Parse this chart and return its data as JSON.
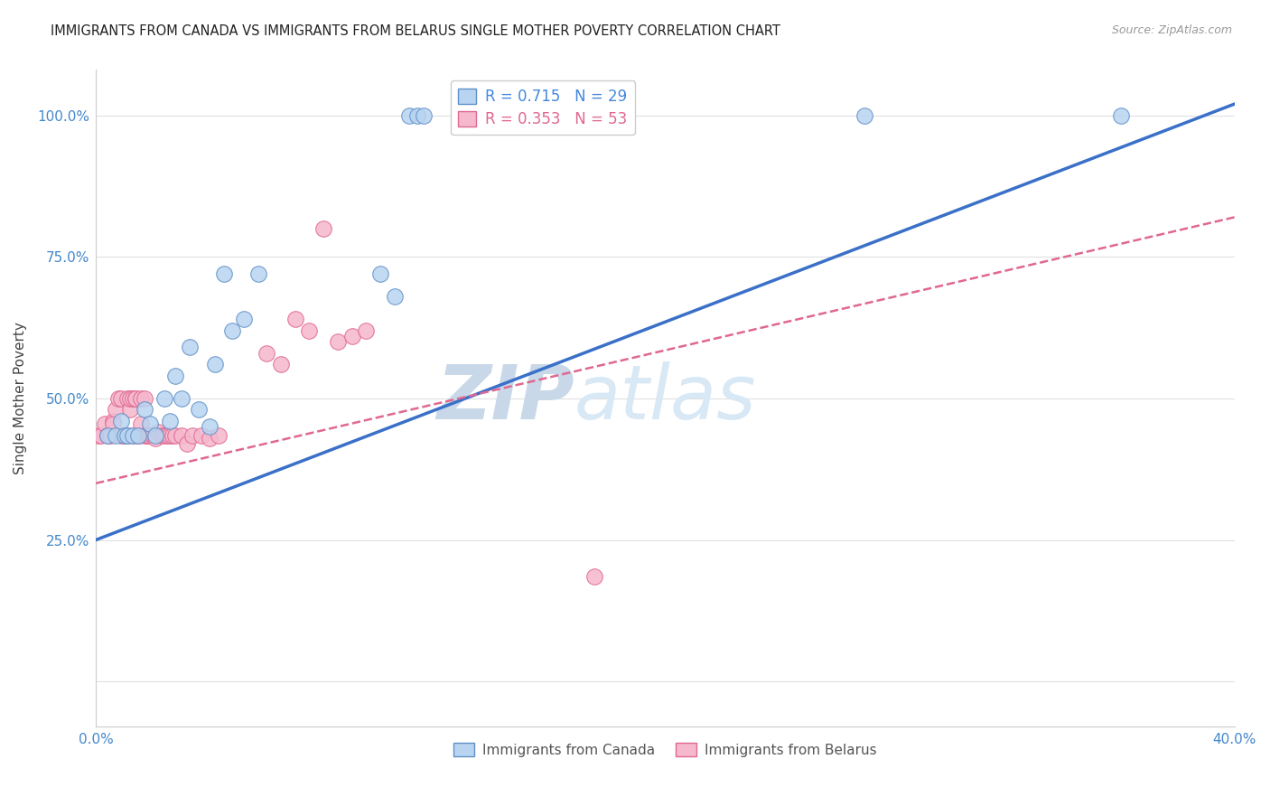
{
  "title": "IMMIGRANTS FROM CANADA VS IMMIGRANTS FROM BELARUS SINGLE MOTHER POVERTY CORRELATION CHART",
  "source": "Source: ZipAtlas.com",
  "ylabel": "Single Mother Poverty",
  "canada_label": "Immigrants from Canada",
  "belarus_label": "Immigrants from Belarus",
  "canada_color": "#b8d4f0",
  "canada_edge_color": "#6090c8",
  "belarus_color": "#f5b8cc",
  "belarus_edge_color": "#e06890",
  "trend_canada_color": "#3a70c8",
  "trend_belarus_color": "#e06890",
  "watermark_zip": "ZIP",
  "watermark_atlas": "atlas",
  "watermark_color": "#d8e8f5",
  "legend_r_canada": "R = 0.715",
  "legend_n_canada": "N = 29",
  "legend_r_belarus": "R = 0.353",
  "legend_n_belarus": "N = 53",
  "legend_color_canada": "#4488dd",
  "legend_color_belarus": "#e06890",
  "xmin": 0.0,
  "xmax": 0.4,
  "ymin": -0.08,
  "ymax": 1.08,
  "yticks": [
    0.0,
    0.25,
    0.5,
    0.75,
    1.0
  ],
  "ytick_labels": [
    "",
    "25.0%",
    "50.0%",
    "75.0%",
    "100.0%"
  ],
  "xtick_labels": [
    "0.0%",
    "",
    "",
    "",
    "",
    "40.0%"
  ],
  "canada_x": [
    0.004,
    0.007,
    0.009,
    0.01,
    0.011,
    0.013,
    0.015,
    0.017,
    0.019,
    0.021,
    0.024,
    0.026,
    0.028,
    0.03,
    0.033,
    0.036,
    0.04,
    0.042,
    0.045,
    0.048,
    0.052,
    0.057,
    0.1,
    0.105,
    0.11,
    0.113,
    0.115,
    0.27,
    0.36
  ],
  "canada_y": [
    0.435,
    0.435,
    0.46,
    0.435,
    0.435,
    0.435,
    0.435,
    0.48,
    0.455,
    0.435,
    0.5,
    0.46,
    0.54,
    0.5,
    0.59,
    0.48,
    0.45,
    0.56,
    0.72,
    0.62,
    0.64,
    0.72,
    0.72,
    0.68,
    1.0,
    1.0,
    1.0,
    1.0,
    1.0
  ],
  "belarus_x": [
    0.001,
    0.002,
    0.003,
    0.004,
    0.005,
    0.006,
    0.006,
    0.007,
    0.008,
    0.009,
    0.009,
    0.01,
    0.011,
    0.011,
    0.012,
    0.012,
    0.013,
    0.013,
    0.014,
    0.014,
    0.015,
    0.015,
    0.016,
    0.016,
    0.017,
    0.017,
    0.018,
    0.018,
    0.019,
    0.02,
    0.021,
    0.022,
    0.023,
    0.024,
    0.025,
    0.026,
    0.027,
    0.028,
    0.03,
    0.032,
    0.034,
    0.037,
    0.04,
    0.043,
    0.06,
    0.065,
    0.07,
    0.075,
    0.08,
    0.085,
    0.09,
    0.095,
    0.175
  ],
  "belarus_y": [
    0.435,
    0.435,
    0.455,
    0.435,
    0.435,
    0.46,
    0.455,
    0.48,
    0.5,
    0.435,
    0.5,
    0.435,
    0.5,
    0.435,
    0.48,
    0.5,
    0.5,
    0.435,
    0.5,
    0.5,
    0.435,
    0.435,
    0.455,
    0.5,
    0.5,
    0.435,
    0.435,
    0.435,
    0.435,
    0.435,
    0.43,
    0.44,
    0.435,
    0.435,
    0.435,
    0.435,
    0.435,
    0.435,
    0.435,
    0.42,
    0.435,
    0.435,
    0.43,
    0.435,
    0.58,
    0.56,
    0.64,
    0.62,
    0.8,
    0.6,
    0.61,
    0.62,
    0.185
  ],
  "canada_trend_x": [
    0.0,
    0.4
  ],
  "canada_trend_y": [
    0.25,
    1.02
  ],
  "belarus_trend_x": [
    0.0,
    0.4
  ],
  "belarus_trend_y": [
    0.35,
    0.82
  ]
}
